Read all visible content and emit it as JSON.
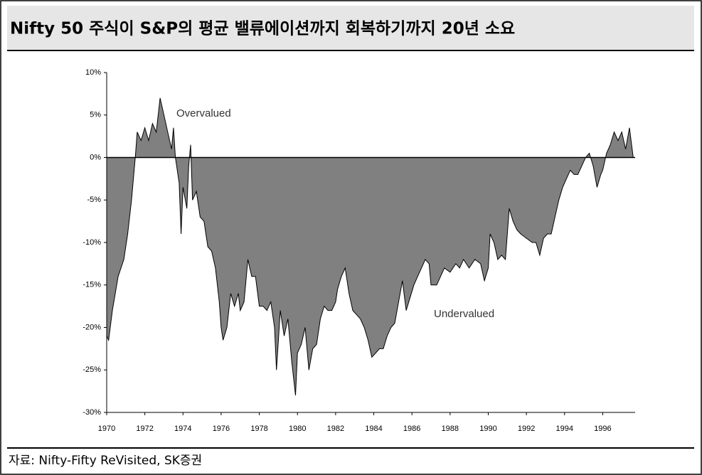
{
  "chart_data": {
    "type": "area",
    "title": "Nifty 50 주식이 S&P의 평균 밸류에이션까지 회복하기까지 20년 소요",
    "source": "자료: Nifty-Fifty ReVisited, SK증권",
    "annotations": [
      "Overvalued",
      "Undervalued"
    ],
    "color": "#808080",
    "x": [
      1970.0,
      1970.1,
      1970.3,
      1970.6,
      1970.9,
      1971.1,
      1971.3,
      1971.5,
      1971.6,
      1971.8,
      1972.0,
      1972.2,
      1972.4,
      1972.6,
      1972.8,
      1973.0,
      1973.2,
      1973.4,
      1973.5,
      1973.6,
      1973.8,
      1973.9,
      1974.0,
      1974.2,
      1974.3,
      1974.4,
      1974.5,
      1974.7,
      1974.9,
      1975.1,
      1975.3,
      1975.5,
      1975.7,
      1975.9,
      1976.0,
      1976.1,
      1976.3,
      1976.5,
      1976.7,
      1976.9,
      1977.0,
      1977.2,
      1977.4,
      1977.6,
      1977.8,
      1978.0,
      1978.2,
      1978.4,
      1978.6,
      1978.8,
      1978.9,
      1979.1,
      1979.3,
      1979.5,
      1979.7,
      1979.9,
      1980.0,
      1980.2,
      1980.4,
      1980.6,
      1980.8,
      1981.0,
      1981.2,
      1981.4,
      1981.6,
      1981.8,
      1982.0,
      1982.1,
      1982.3,
      1982.5,
      1982.7,
      1982.9,
      1983.1,
      1983.3,
      1983.5,
      1983.7,
      1983.9,
      1984.1,
      1984.3,
      1984.5,
      1984.7,
      1984.9,
      1985.1,
      1985.3,
      1985.5,
      1985.7,
      1985.9,
      1986.1,
      1986.3,
      1986.5,
      1986.7,
      1986.9,
      1987.0,
      1987.3,
      1987.5,
      1987.7,
      1988.0,
      1988.3,
      1988.5,
      1988.7,
      1989.0,
      1989.3,
      1989.6,
      1989.8,
      1990.0,
      1990.1,
      1990.3,
      1990.5,
      1990.7,
      1990.9,
      1991.1,
      1991.3,
      1991.5,
      1991.7,
      1992.0,
      1992.3,
      1992.5,
      1992.7,
      1992.9,
      1993.1,
      1993.3,
      1993.5,
      1993.7,
      1993.9,
      1994.1,
      1994.3,
      1994.5,
      1994.7,
      1994.9,
      1995.1,
      1995.3,
      1995.5,
      1995.7,
      1995.9,
      1996.0,
      1996.2,
      1996.4,
      1996.6,
      1996.8,
      1997.0,
      1997.2,
      1997.4,
      1997.6
    ],
    "values": [
      -21,
      -21.5,
      -18,
      -14,
      -12,
      -9,
      -5,
      0,
      3,
      2,
      3.5,
      2,
      4,
      3,
      7,
      5,
      3,
      1,
      3.5,
      0,
      -3,
      -9,
      -3.5,
      -6,
      -1,
      1.5,
      -5,
      -4,
      -7,
      -7.5,
      -10.5,
      -11,
      -13,
      -17,
      -20,
      -21.5,
      -20,
      -16,
      -17.5,
      -16,
      -18,
      -17,
      -12,
      -14,
      -14,
      -17.5,
      -17.5,
      -18,
      -17,
      -20,
      -25,
      -18,
      -21,
      -19,
      -24,
      -28,
      -23,
      -22,
      -20,
      -25,
      -22.5,
      -22,
      -19,
      -17.5,
      -18,
      -18,
      -17,
      -15.5,
      -14,
      -13,
      -16,
      -18,
      -18.5,
      -19,
      -20,
      -21.5,
      -23.5,
      -23,
      -22.5,
      -22.5,
      -21,
      -20,
      -19.5,
      -17,
      -14.5,
      -18,
      -16.5,
      -15,
      -14,
      -13,
      -12,
      -12.5,
      -15,
      -15,
      -14,
      -13,
      -13.5,
      -12.5,
      -13,
      -12,
      -13,
      -12,
      -12.5,
      -14.5,
      -13,
      -9,
      -10,
      -12,
      -11.5,
      -12,
      -6,
      -7.5,
      -8.5,
      -9,
      -9.5,
      -10,
      -10,
      -11.5,
      -9.5,
      -9,
      -9,
      -7,
      -5,
      -3.5,
      -2.5,
      -1.5,
      -2,
      -2,
      -1,
      0,
      0.5,
      -1,
      -3.5,
      -2,
      -1.5,
      0.5,
      1.5,
      3,
      2,
      3,
      1,
      3.5,
      0
    ],
    "xlim": [
      1970,
      1997.7
    ],
    "xticks": [
      1970,
      1972,
      1974,
      1976,
      1978,
      1980,
      1982,
      1984,
      1986,
      1988,
      1990,
      1992,
      1994,
      1996
    ],
    "ylim": [
      -30,
      10
    ],
    "yticks": [
      {
        "value": -30,
        "label": "-30%"
      },
      {
        "value": -25,
        "label": "-25%"
      },
      {
        "value": -20,
        "label": "-20%"
      },
      {
        "value": -15,
        "label": "-15%"
      },
      {
        "value": -10,
        "label": "-10%"
      },
      {
        "value": -5,
        "label": "-5%"
      },
      {
        "value": 0,
        "label": "0%"
      },
      {
        "value": 5,
        "label": "5%"
      },
      {
        "value": 10,
        "label": "10%"
      }
    ]
  }
}
